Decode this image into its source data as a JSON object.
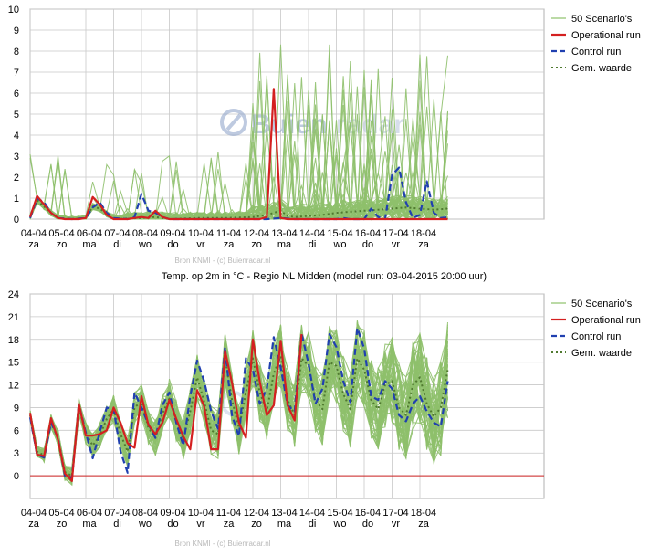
{
  "days": [
    {
      "date": "04-04",
      "day": "za"
    },
    {
      "date": "05-04",
      "day": "zo"
    },
    {
      "date": "06-04",
      "day": "ma"
    },
    {
      "date": "07-04",
      "day": "di"
    },
    {
      "date": "08-04",
      "day": "wo"
    },
    {
      "date": "09-04",
      "day": "do"
    },
    {
      "date": "10-04",
      "day": "vr"
    },
    {
      "date": "11-04",
      "day": "za"
    },
    {
      "date": "12-04",
      "day": "zo"
    },
    {
      "date": "13-04",
      "day": "ma"
    },
    {
      "date": "14-04",
      "day": "di"
    },
    {
      "date": "15-04",
      "day": "wo"
    },
    {
      "date": "16-04",
      "day": "do"
    },
    {
      "date": "17-04",
      "day": "vr"
    },
    {
      "date": "18-04",
      "day": "za"
    }
  ],
  "legend": {
    "scenarios": "50 Scenario's",
    "operational": "Operational run",
    "control": "Control run",
    "mean": "Gem. waarde"
  },
  "colors": {
    "scenarios": "#8ec06c",
    "operational": "#d42020",
    "control": "#2040b0",
    "mean": "#507a30",
    "grid": "#c8c8c8",
    "zero_line": "#cc2222",
    "watermark": "#8aa0c8"
  },
  "watermark": {
    "icon": "buienradar-logo-icon",
    "brand_a": "Buien",
    "brand_b": "radar"
  },
  "credit": "Bron KNMI - (c) Buienradar.nl",
  "chart_data": [
    {
      "type": "line",
      "title": "",
      "ylim": [
        0,
        10
      ],
      "yticks": [
        0,
        1,
        2,
        3,
        4,
        5,
        6,
        7,
        8,
        9,
        10
      ],
      "grid": true,
      "legend_position": "top-right",
      "x_unit": "day index (6-hourly steps, day 0 = 04-04)",
      "series": [
        {
          "name": "Operational run",
          "x": [
            0,
            0.25,
            0.5,
            0.75,
            1,
            1.25,
            1.5,
            1.75,
            2,
            2.25,
            2.5,
            2.75,
            3,
            3.25,
            3.5,
            3.75,
            4,
            4.25,
            4.5,
            4.75,
            5,
            5.25,
            5.5,
            5.75,
            6,
            6.5,
            7,
            7.5,
            8,
            8.25,
            8.5,
            8.75,
            9,
            9.25,
            9.5,
            10,
            10.5,
            11,
            11.5,
            12,
            13,
            14,
            15
          ],
          "y": [
            0.1,
            1.1,
            0.7,
            0.3,
            0.05,
            0,
            0,
            0,
            0.05,
            1.05,
            0.7,
            0.2,
            0,
            0,
            0,
            0.05,
            0.1,
            0.05,
            0.4,
            0.1,
            0,
            0,
            0,
            0,
            0,
            0,
            0,
            0,
            0,
            0,
            0.1,
            6.2,
            0.05,
            0,
            0,
            0,
            0,
            0,
            0,
            0,
            0,
            0,
            0
          ]
        },
        {
          "name": "Control run",
          "x": [
            0,
            0.25,
            0.5,
            0.75,
            1,
            1.5,
            2,
            2.25,
            2.5,
            2.75,
            3,
            3.5,
            3.75,
            4,
            4.25,
            4.5,
            4.75,
            5,
            6,
            7,
            8,
            8.5,
            9,
            9.5,
            10,
            10.5,
            11,
            11.25,
            11.5,
            11.75,
            12,
            12.25,
            12.5,
            12.75,
            13,
            13.25,
            13.5,
            13.75,
            14,
            14.25,
            14.5,
            14.75,
            15
          ],
          "y": [
            0.05,
            1,
            0.8,
            0.3,
            0.05,
            0,
            0.05,
            0.55,
            0.8,
            0.3,
            0.05,
            0,
            0.1,
            1.2,
            0.4,
            0.3,
            0.1,
            0,
            0,
            0,
            0,
            0,
            0.05,
            0,
            0,
            0,
            0,
            0.05,
            0,
            0,
            0,
            0.5,
            0.1,
            0,
            2.1,
            2.45,
            0.8,
            0.05,
            0.2,
            1.8,
            0.3,
            0.05,
            0.1
          ]
        },
        {
          "name": "Gem. waarde",
          "x": [
            0,
            0.25,
            0.5,
            0.75,
            1,
            1.5,
            2,
            2.25,
            2.5,
            3,
            4,
            4.5,
            5,
            6,
            7,
            8,
            8.5,
            9,
            9.25,
            9.5,
            10,
            10.5,
            11,
            11.5,
            12,
            12.5,
            13,
            13.5,
            14,
            14.5,
            15
          ],
          "y": [
            0.1,
            0.9,
            0.6,
            0.3,
            0.05,
            0,
            0.05,
            0.6,
            0.5,
            0,
            0.05,
            0.1,
            0,
            0.05,
            0.05,
            0.1,
            0.2,
            0.4,
            0.15,
            0.1,
            0.15,
            0.2,
            0.3,
            0.35,
            0.4,
            0.45,
            0.5,
            0.55,
            0.5,
            0.45,
            0.5
          ]
        }
      ]
    },
    {
      "type": "line",
      "title": "Temp. op 2m in °C - Regio NL Midden (model run: 03-04-2015 20:00 uur)",
      "ylim": [
        -3,
        24
      ],
      "yticks": [
        0,
        3,
        6,
        9,
        12,
        15,
        18,
        21,
        24
      ],
      "grid": true,
      "legend_position": "top-right",
      "x_unit": "day index (6-hourly steps, day 0 = 04-04)",
      "series": [
        {
          "name": "Operational run",
          "x": [
            0,
            0.25,
            0.5,
            0.75,
            1,
            1.25,
            1.5,
            1.75,
            2,
            2.25,
            2.5,
            2.75,
            3,
            3.25,
            3.5,
            3.75,
            4,
            4.25,
            4.5,
            4.75,
            5,
            5.25,
            5.5,
            5.75,
            6,
            6.25,
            6.5,
            6.75,
            7,
            7.25,
            7.5,
            7.75,
            8,
            8.25,
            8.5,
            8.75,
            9,
            9.25,
            9.5,
            9.75
          ],
          "y": [
            8.3,
            2.8,
            2.6,
            7.6,
            4.8,
            0.3,
            -0.7,
            9.5,
            5.3,
            5.3,
            5.5,
            6.0,
            9.0,
            7.0,
            4.3,
            3.7,
            10.5,
            6.7,
            5.5,
            7.0,
            10.0,
            7.5,
            5.2,
            3.5,
            11.3,
            9.2,
            3.5,
            3.5,
            16.5,
            12.3,
            7.0,
            5.0,
            18.0,
            12.4,
            8.0,
            9.3,
            17.8,
            9.3,
            7.3,
            18.7
          ]
        },
        {
          "name": "Control run",
          "x": [
            0,
            0.25,
            0.5,
            0.75,
            1,
            1.25,
            1.5,
            1.75,
            2,
            2.25,
            2.5,
            2.75,
            3,
            3.25,
            3.5,
            3.75,
            4,
            4.25,
            4.5,
            4.75,
            5,
            5.25,
            5.5,
            5.75,
            6,
            6.25,
            6.5,
            6.75,
            7,
            7.25,
            7.5,
            7.75,
            8,
            8.25,
            8.5,
            8.75,
            9,
            9.25,
            9.5,
            9.75,
            10,
            10.25,
            10.5,
            10.75,
            11,
            11.25,
            11.5,
            11.75,
            12,
            12.25,
            12.5,
            12.75,
            13,
            13.25,
            13.5,
            13.75,
            14,
            14.25,
            14.5,
            14.75,
            15
          ],
          "y": [
            7.7,
            2.8,
            2.4,
            7.0,
            5.0,
            0.0,
            -0.3,
            9.4,
            5.7,
            2.3,
            5.8,
            9.0,
            8.8,
            3.2,
            0.4,
            11.0,
            9.0,
            6.8,
            5.0,
            9.3,
            11.0,
            7.0,
            4.0,
            10.5,
            15.2,
            12.5,
            8.5,
            6.2,
            17.0,
            8.0,
            5.2,
            15.5,
            14.0,
            9.5,
            11.5,
            18.3,
            14.3,
            9.3,
            8.5,
            18.8,
            14.8,
            9.5,
            11.5,
            18.7,
            17.0,
            12.5,
            9.7,
            19.5,
            16.8,
            10.5,
            10.0,
            12.5,
            11.5,
            8.0,
            7.2,
            9.5,
            10.5,
            8.5,
            7.0,
            6.5,
            12.5
          ]
        },
        {
          "name": "Gem. waarde",
          "x": [
            0,
            0.25,
            0.5,
            0.75,
            1,
            1.25,
            1.5,
            1.75,
            2,
            2.25,
            2.5,
            2.75,
            3,
            3.25,
            3.5,
            3.75,
            4,
            4.25,
            4.5,
            4.75,
            5,
            5.25,
            5.5,
            5.75,
            6,
            6.25,
            6.5,
            6.75,
            7,
            7.25,
            7.5,
            7.75,
            8,
            8.25,
            8.5,
            8.75,
            9,
            9.25,
            9.5,
            9.75,
            10,
            10.25,
            10.5,
            10.75,
            11,
            11.25,
            11.5,
            11.75,
            12,
            12.25,
            12.5,
            12.75,
            13,
            13.25,
            13.5,
            13.75,
            14,
            14.25,
            14.5,
            14.75,
            15
          ],
          "y": [
            8.0,
            3.2,
            2.7,
            7.2,
            5.0,
            0.5,
            0.0,
            9.0,
            5.6,
            4.0,
            5.3,
            7.5,
            8.8,
            5.5,
            3.2,
            9.0,
            9.8,
            6.3,
            5.0,
            8.2,
            10.2,
            7.3,
            4.8,
            8.5,
            13.0,
            9.8,
            6.0,
            5.5,
            15.5,
            10.0,
            6.3,
            11.0,
            15.5,
            11.0,
            8.5,
            13.5,
            15.8,
            10.0,
            8.0,
            15.5,
            14.5,
            10.0,
            8.8,
            15.0,
            14.5,
            10.8,
            8.8,
            15.5,
            14.0,
            10.0,
            8.8,
            12.0,
            12.5,
            9.0,
            8.0,
            12.0,
            13.0,
            9.5,
            7.8,
            9.0,
            14.0
          ]
        }
      ]
    }
  ]
}
